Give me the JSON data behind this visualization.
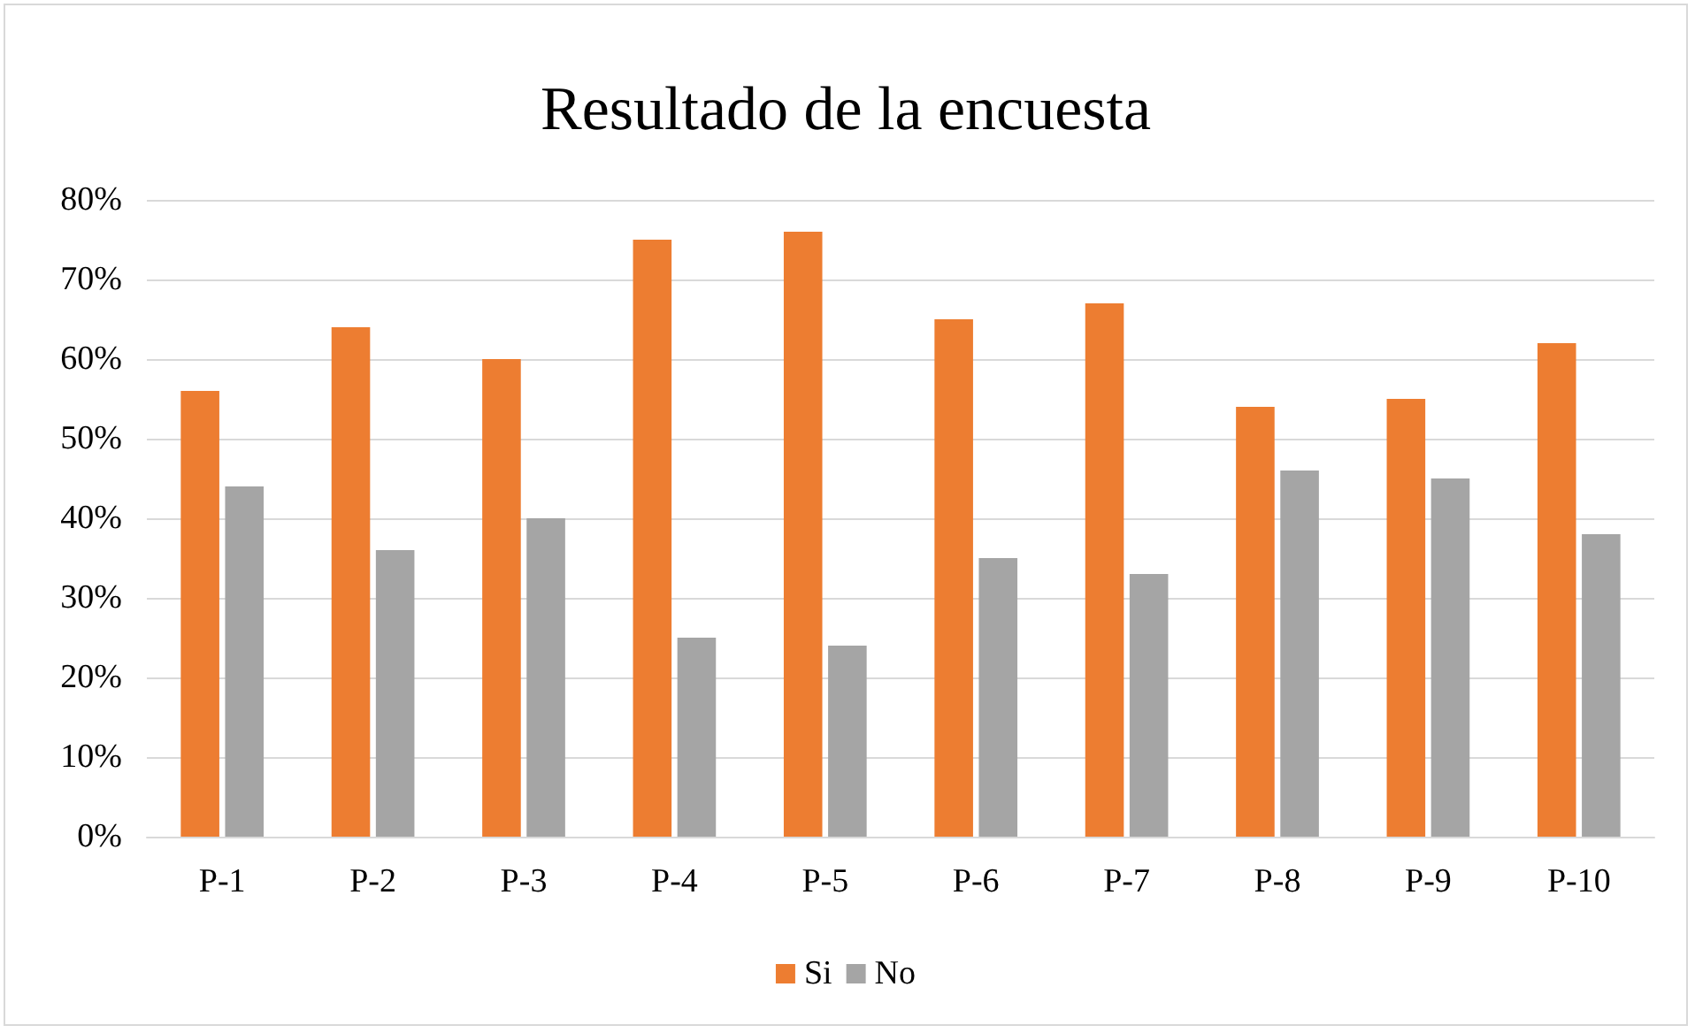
{
  "chart_data": {
    "type": "bar",
    "title": "Resultado de la encuesta",
    "categories": [
      "P-1",
      "P-2",
      "P-3",
      "P-4",
      "P-5",
      "P-6",
      "P-7",
      "P-8",
      "P-9",
      "P-10"
    ],
    "series": [
      {
        "name": "Si",
        "color": "#ed7d31",
        "values": [
          56,
          64,
          60,
          75,
          76,
          65,
          67,
          54,
          55,
          62
        ]
      },
      {
        "name": "No",
        "color": "#a5a5a5",
        "values": [
          44,
          36,
          40,
          25,
          24,
          35,
          33,
          46,
          45,
          38
        ]
      }
    ],
    "ylim": [
      0,
      80
    ],
    "yticks": [
      {
        "value": 0,
        "label": "0%"
      },
      {
        "value": 10,
        "label": "10%"
      },
      {
        "value": 20,
        "label": "20%"
      },
      {
        "value": 30,
        "label": "30%"
      },
      {
        "value": 40,
        "label": "40%"
      },
      {
        "value": 50,
        "label": "50%"
      },
      {
        "value": 60,
        "label": "60%"
      },
      {
        "value": 70,
        "label": "70%"
      },
      {
        "value": 80,
        "label": "80%"
      }
    ],
    "grid": "y",
    "legend": "bottom"
  }
}
